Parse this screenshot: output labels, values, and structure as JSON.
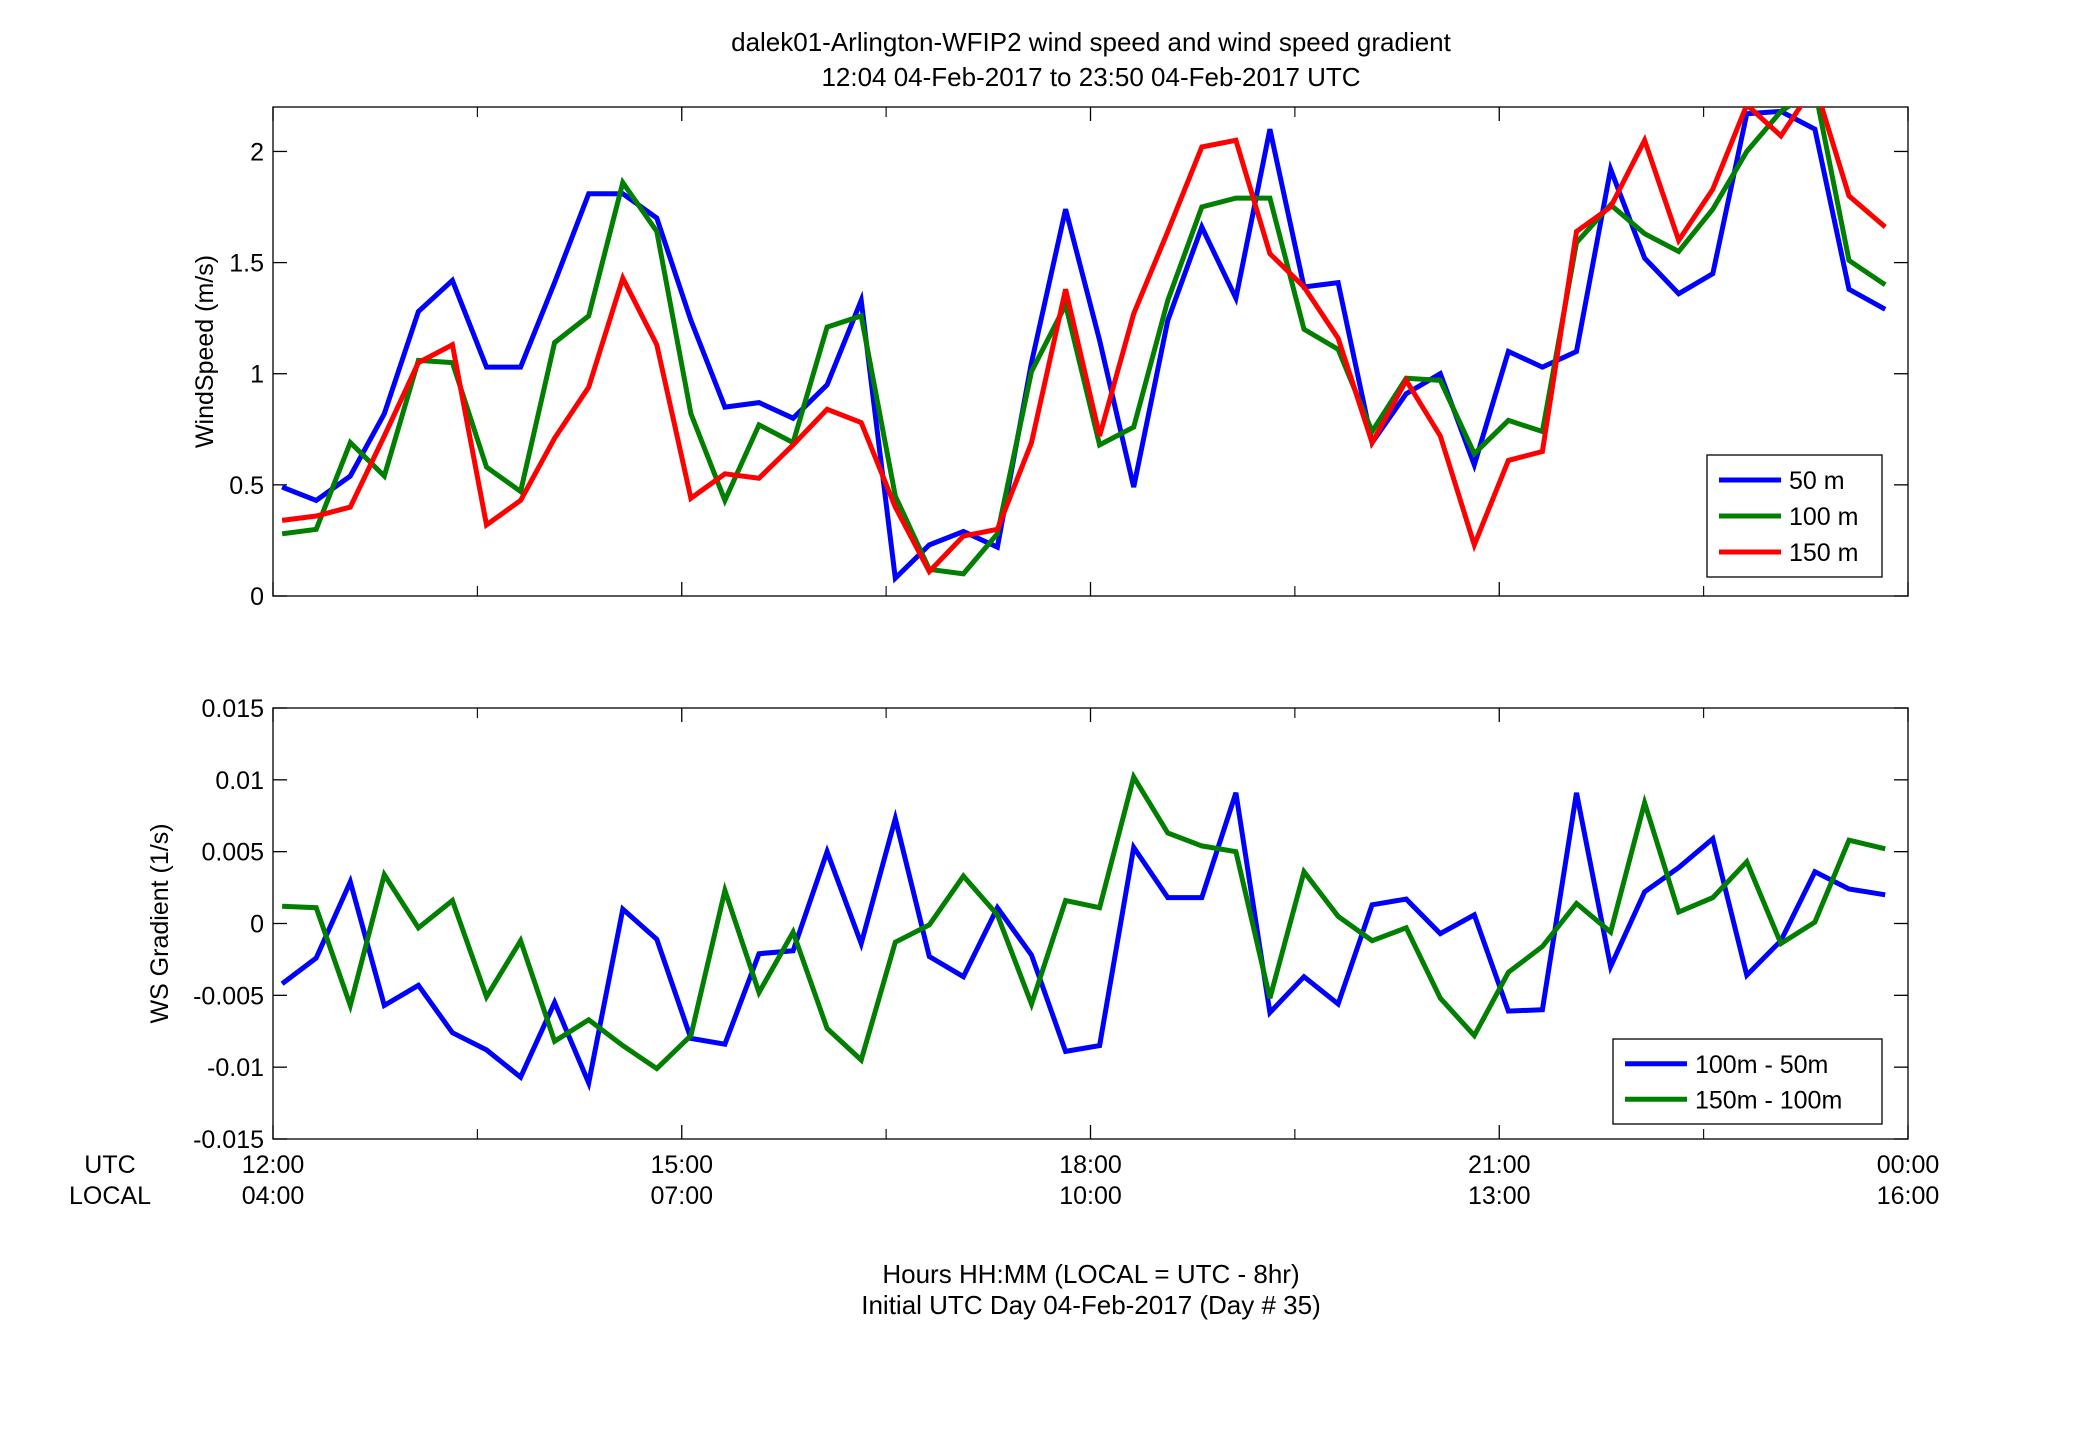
{
  "title": {
    "line1": "dalek01-Arlington-WFIP2  wind speed and wind speed gradient",
    "line2": "12:04 04-Feb-2017 to 23:50 04-Feb-2017  UTC"
  },
  "xaxis": {
    "row_labels": {
      "utc": "UTC",
      "local": "LOCAL"
    },
    "utc_ticks": [
      "12:00",
      "15:00",
      "18:00",
      "21:00",
      "00:00"
    ],
    "local_ticks": [
      "04:00",
      "07:00",
      "10:00",
      "13:00",
      "16:00"
    ],
    "footer_line1": "Hours HH:MM  (LOCAL = UTC - 8hr)",
    "footer_line2": "Initial UTC Day 04-Feb-2017 (Day # 35)"
  },
  "chart_data": [
    {
      "type": "line",
      "ylabel": "WindSpeed (m/s)",
      "xlabel": "",
      "xlim": [
        12.0,
        24.0
      ],
      "ylim": [
        0,
        2.2
      ],
      "yticks": [
        0,
        0.5,
        1,
        1.5,
        2
      ],
      "ytick_labels": [
        "0",
        "0.5",
        "1",
        "1.5",
        "2"
      ],
      "grid": false,
      "legend_position": "bottom-right",
      "x": [
        12.067,
        12.317,
        12.567,
        12.817,
        13.067,
        13.317,
        13.567,
        13.817,
        14.067,
        14.317,
        14.567,
        14.817,
        15.067,
        15.317,
        15.567,
        15.817,
        16.067,
        16.317,
        16.567,
        16.817,
        17.067,
        17.317,
        17.567,
        17.817,
        18.067,
        18.317,
        18.567,
        18.817,
        19.067,
        19.317,
        19.567,
        19.817,
        20.067,
        20.317,
        20.567,
        20.817,
        21.067,
        21.317,
        21.567,
        21.817,
        22.067,
        22.317,
        22.567,
        22.817,
        23.067,
        23.317,
        23.567,
        23.833
      ],
      "series": [
        {
          "name": "50 m",
          "color": "#0000ff",
          "values": [
            0.49,
            0.43,
            0.54,
            0.82,
            1.28,
            1.42,
            1.03,
            1.03,
            1.41,
            1.81,
            1.81,
            1.7,
            1.24,
            0.85,
            0.87,
            0.8,
            0.95,
            1.33,
            0.08,
            0.23,
            0.29,
            0.22,
            1.05,
            1.74,
            1.15,
            0.49,
            1.24,
            1.66,
            1.34,
            2.1,
            1.39,
            1.41,
            0.69,
            0.91,
            1.0,
            0.59,
            1.1,
            1.03,
            1.1,
            1.92,
            1.52,
            1.36,
            1.45,
            2.17,
            2.18,
            2.1,
            1.38,
            1.29
          ]
        },
        {
          "name": "100 m",
          "color": "#007f00",
          "values": [
            0.28,
            0.3,
            0.69,
            0.54,
            1.06,
            1.05,
            0.58,
            0.47,
            1.14,
            1.26,
            1.86,
            1.64,
            0.82,
            0.43,
            0.77,
            0.69,
            1.21,
            1.26,
            0.45,
            0.12,
            0.1,
            0.28,
            1.01,
            1.31,
            0.68,
            0.76,
            1.33,
            1.75,
            1.79,
            1.79,
            1.2,
            1.11,
            0.74,
            0.98,
            0.97,
            0.64,
            0.79,
            0.74,
            1.59,
            1.76,
            1.63,
            1.55,
            1.74,
            2.0,
            2.18,
            2.28,
            1.51,
            1.4
          ]
        },
        {
          "name": "150 m",
          "color": "#ff0000",
          "values": [
            0.34,
            0.36,
            0.4,
            0.72,
            1.05,
            1.13,
            0.32,
            0.43,
            0.71,
            0.94,
            1.43,
            1.13,
            0.44,
            0.55,
            0.53,
            0.68,
            0.84,
            0.78,
            0.4,
            0.11,
            0.27,
            0.3,
            0.69,
            1.38,
            0.72,
            1.27,
            1.64,
            2.02,
            2.05,
            1.54,
            1.39,
            1.16,
            0.69,
            0.97,
            0.72,
            0.23,
            0.61,
            0.65,
            1.64,
            1.75,
            2.05,
            1.6,
            1.83,
            2.21,
            2.07,
            2.3,
            1.8,
            1.66
          ]
        }
      ]
    },
    {
      "type": "line",
      "ylabel": "WS Gradient (1/s)",
      "xlabel": "",
      "xlim": [
        12.0,
        24.0
      ],
      "ylim": [
        -0.015,
        0.015
      ],
      "yticks": [
        -0.015,
        -0.01,
        -0.005,
        0,
        0.005,
        0.01,
        0.015
      ],
      "ytick_labels": [
        "-0.015",
        "-0.01",
        "-0.005",
        "0",
        "0.005",
        "0.01",
        "0.015"
      ],
      "grid": false,
      "legend_position": "bottom-right",
      "x": [
        12.067,
        12.317,
        12.567,
        12.817,
        13.067,
        13.317,
        13.567,
        13.817,
        14.067,
        14.317,
        14.567,
        14.817,
        15.067,
        15.317,
        15.567,
        15.817,
        16.067,
        16.317,
        16.567,
        16.817,
        17.067,
        17.317,
        17.567,
        17.817,
        18.067,
        18.317,
        18.567,
        18.817,
        19.067,
        19.317,
        19.567,
        19.817,
        20.067,
        20.317,
        20.567,
        20.817,
        21.067,
        21.317,
        21.567,
        21.817,
        22.067,
        22.317,
        22.567,
        22.817,
        23.067,
        23.317,
        23.567,
        23.833
      ],
      "series": [
        {
          "name": "100m - 50m",
          "color": "#0000ff",
          "values": [
            -0.0042,
            -0.0024,
            0.0029,
            -0.0057,
            -0.0043,
            -0.0076,
            -0.0088,
            -0.0107,
            -0.0055,
            -0.0111,
            0.001,
            -0.0011,
            -0.008,
            -0.0084,
            -0.0021,
            -0.0019,
            0.005,
            -0.0014,
            0.0073,
            -0.0023,
            -0.0037,
            0.0011,
            -0.0022,
            -0.0089,
            -0.0085,
            0.0053,
            0.0018,
            0.0018,
            0.0091,
            -0.0062,
            -0.0037,
            -0.0056,
            0.0013,
            0.0017,
            -0.0007,
            0.0006,
            -0.0061,
            -0.006,
            0.0091,
            -0.003,
            0.0022,
            0.0039,
            0.0059,
            -0.0036,
            -0.0012,
            0.0036,
            0.0024,
            0.002
          ]
        },
        {
          "name": "150m - 100m",
          "color": "#007f00",
          "values": [
            0.0012,
            0.0011,
            -0.0057,
            0.0034,
            -0.0003,
            0.0016,
            -0.0051,
            -0.0012,
            -0.0082,
            -0.0067,
            -0.0085,
            -0.0101,
            -0.0078,
            0.0023,
            -0.0048,
            -0.0006,
            -0.0073,
            -0.0095,
            -0.0013,
            -0.0001,
            0.0033,
            0.0006,
            -0.0056,
            0.0016,
            0.0011,
            0.0102,
            0.0063,
            0.0054,
            0.005,
            -0.0052,
            0.0036,
            0.0005,
            -0.0012,
            -0.0003,
            -0.0052,
            -0.0078,
            -0.0034,
            -0.0016,
            0.0014,
            -0.0006,
            0.0084,
            0.0008,
            0.0018,
            0.0043,
            -0.0014,
            0.0001,
            0.0058,
            0.0052
          ]
        }
      ]
    }
  ]
}
